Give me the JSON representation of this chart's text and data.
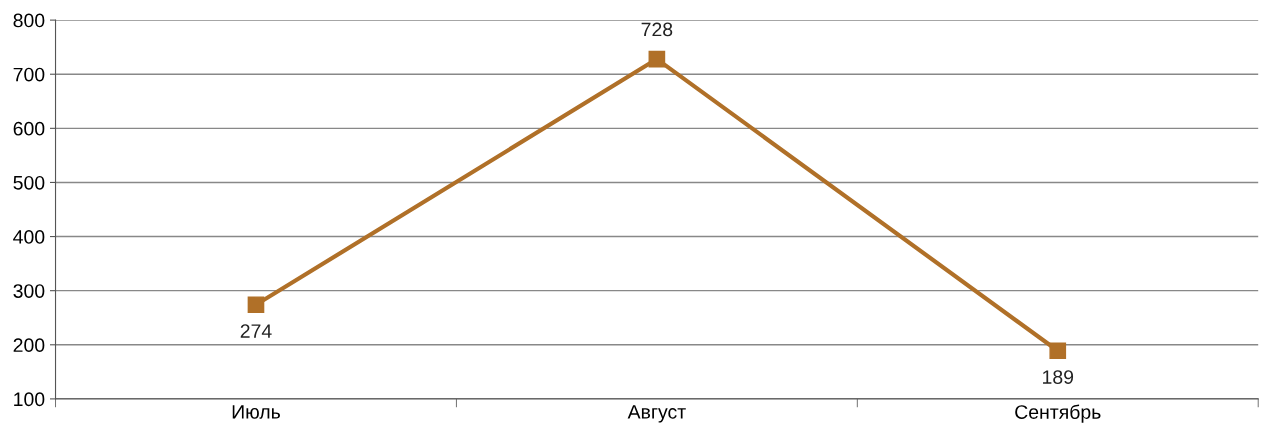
{
  "chart_data": {
    "type": "line",
    "categories": [
      "Июль",
      "Август",
      "Сентябрь"
    ],
    "series": [
      {
        "color": "#b07028",
        "values": [
          274,
          728,
          189
        ]
      }
    ],
    "ylim": [
      100,
      800
    ],
    "yticks": [
      100,
      200,
      300,
      400,
      500,
      600,
      700,
      800
    ],
    "grid": "y",
    "legend": false,
    "marker": "square",
    "line_style": "solid",
    "data_labels": true
  }
}
